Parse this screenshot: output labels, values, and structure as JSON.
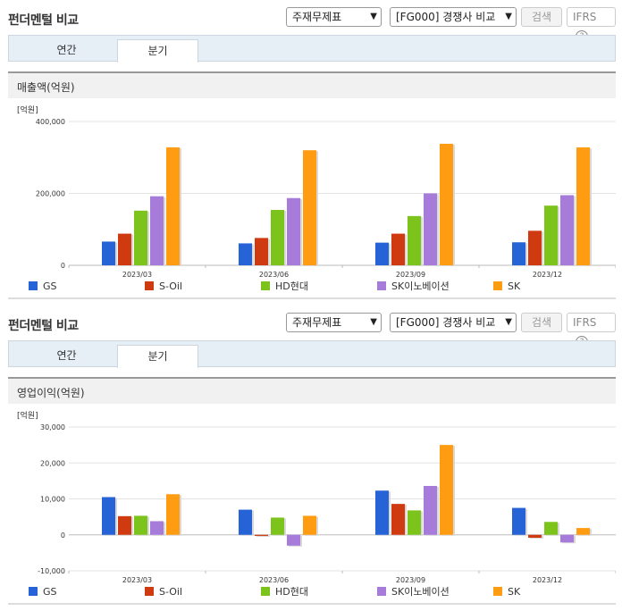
{
  "header": {
    "title": "펀더멘털 비교",
    "select_statement": "주재무제표",
    "select_peer": "[FG000] 경쟁사 비교",
    "search_label": "검색",
    "ifrs_label": "IFRS",
    "help_icon": "?"
  },
  "tabs": [
    {
      "label": "연간"
    },
    {
      "label": "분기"
    }
  ],
  "colors": {
    "GS": "#2563d6",
    "S-Oil": "#d03a10",
    "HD현대": "#7cc41c",
    "SK이노베이션": "#a77bd9",
    "SK": "#ff9c12"
  },
  "chart_data": [
    {
      "type": "bar",
      "title": "매출액(억원)",
      "unit_label": "[억원]",
      "categories": [
        "2023/03",
        "2023/06",
        "2023/09",
        "2023/12"
      ],
      "ylim": [
        0,
        400000
      ],
      "yticks": [
        0,
        200000,
        400000
      ],
      "ytick_labels": [
        "0",
        "200,000",
        "400,000"
      ],
      "series": [
        {
          "name": "GS",
          "values": [
            66000,
            61000,
            63000,
            64000
          ]
        },
        {
          "name": "S-Oil",
          "values": [
            88000,
            76000,
            88000,
            96000
          ]
        },
        {
          "name": "HD현대",
          "values": [
            152000,
            154000,
            137000,
            166000
          ]
        },
        {
          "name": "SK이노베이션",
          "values": [
            192000,
            187000,
            200000,
            195000
          ]
        },
        {
          "name": "SK",
          "values": [
            328000,
            320000,
            338000,
            328000
          ]
        }
      ]
    },
    {
      "type": "bar",
      "title": "영업이익(억원)",
      "unit_label": "[억원]",
      "categories": [
        "2023/03",
        "2023/06",
        "2023/09",
        "2023/12"
      ],
      "ylim": [
        -10000,
        30000
      ],
      "yticks": [
        -10000,
        0,
        10000,
        20000,
        30000
      ],
      "ytick_labels": [
        "-10,000",
        "0",
        "10,000",
        "20,000",
        "30,000"
      ],
      "series": [
        {
          "name": "GS",
          "values": [
            10500,
            7000,
            12300,
            7500
          ]
        },
        {
          "name": "S-Oil",
          "values": [
            5200,
            -300,
            8600,
            -800
          ]
        },
        {
          "name": "HD현대",
          "values": [
            5300,
            4800,
            6800,
            3600
          ]
        },
        {
          "name": "SK이노베이션",
          "values": [
            3800,
            -3000,
            13600,
            -2100
          ]
        },
        {
          "name": "SK",
          "values": [
            11300,
            5300,
            25000,
            1900
          ]
        }
      ]
    }
  ]
}
